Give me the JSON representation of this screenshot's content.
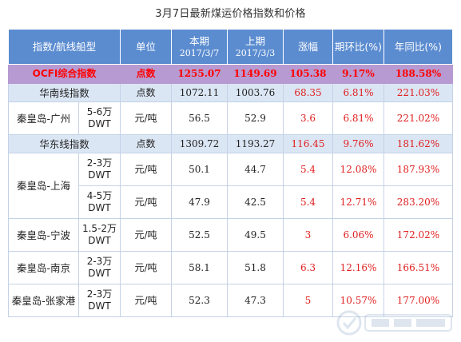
{
  "title": "3月7日最新煤运价格指数和价格",
  "columns": {
    "index_route": "指数/航线船型",
    "unit": "单位",
    "current": "本期",
    "current_date": "2017/3/7",
    "previous": "上期",
    "previous_date": "2017/3/3",
    "change": "涨幅",
    "mom": "期环比(%)",
    "yoy": "年同比(%)"
  },
  "rows": {
    "ocfi": {
      "name": "OCFI综合指数",
      "unit": "点数",
      "current": "1255.07",
      "previous": "1149.69",
      "change": "105.38",
      "mom": "9.17%",
      "yoy": "188.58%"
    },
    "south": {
      "name": "华南线指数",
      "unit": "点数",
      "current": "1072.11",
      "previous": "1003.76",
      "change": "68.35",
      "mom": "6.81%",
      "yoy": "221.03%"
    },
    "qhd_gz": {
      "route": "秦皇岛-广州",
      "ship": "5-6万DWT",
      "unit": "元/吨",
      "current": "56.5",
      "previous": "52.9",
      "change": "3.6",
      "mom": "6.81%",
      "yoy": "221.02%"
    },
    "east": {
      "name": "华东线指数",
      "unit": "点数",
      "current": "1309.72",
      "previous": "1193.27",
      "change": "116.45",
      "mom": "9.76%",
      "yoy": "181.62%"
    },
    "qhd_sh_a": {
      "route": "秦皇岛-上海",
      "ship": "2-3万DWT",
      "unit": "元/吨",
      "current": "50.1",
      "previous": "44.7",
      "change": "5.4",
      "mom": "12.08%",
      "yoy": "187.93%"
    },
    "qhd_sh_b": {
      "ship": "4-5万DWT",
      "unit": "元/吨",
      "current": "47.9",
      "previous": "42.5",
      "change": "5.4",
      "mom": "12.71%",
      "yoy": "283.20%"
    },
    "qhd_nb": {
      "route": "秦皇岛-宁波",
      "ship": "1.5-2万DWT",
      "unit": "元/吨",
      "current": "52.5",
      "previous": "49.5",
      "change": "3",
      "mom": "6.06%",
      "yoy": "172.02%"
    },
    "qhd_nj": {
      "route": "秦皇岛-南京",
      "ship": "2-3万DWT",
      "unit": "元/吨",
      "current": "58.1",
      "previous": "51.8",
      "change": "6.3",
      "mom": "12.16%",
      "yoy": "166.51%"
    },
    "qhd_zjg": {
      "route": "秦皇岛-张家港",
      "ship": "2-3万DWT",
      "unit": "元/吨",
      "current": "52.3",
      "previous": "47.3",
      "change": "5",
      "mom": "10.57%",
      "yoy": "177.00%"
    }
  },
  "colors": {
    "header_bg": "#5b8cd0",
    "featured_bg": "#b79ad2",
    "featured_text": "#ff0000",
    "summary_bg": "#dbe6f4",
    "positive_text": "#e02020"
  }
}
